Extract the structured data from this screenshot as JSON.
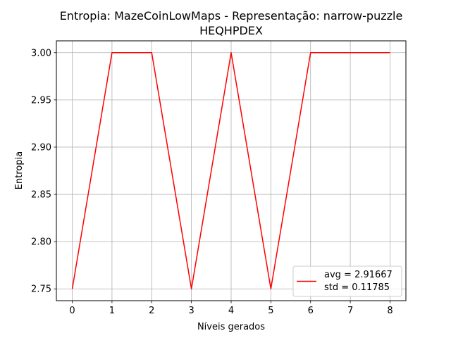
{
  "chart_data": {
    "type": "line",
    "title_line1": "Entropia: MazeCoinLowMaps - Representação: narrow-puzzle",
    "title_line2": "HEQHPDEX",
    "xlabel": "Níveis gerados",
    "ylabel": "Entropia",
    "x": [
      0,
      1,
      2,
      3,
      4,
      5,
      6,
      7,
      8
    ],
    "series": [
      {
        "values": [
          2.75,
          3.0,
          3.0,
          2.75,
          3.0,
          2.75,
          3.0,
          3.0,
          3.0
        ],
        "color": "#ff0000"
      }
    ],
    "xlim": [
      -0.4,
      8.4
    ],
    "ylim": [
      2.7375,
      3.0125
    ],
    "xticks": [
      "0",
      "1",
      "2",
      "3",
      "4",
      "5",
      "6",
      "7",
      "8"
    ],
    "yticks": [
      "2.75",
      "2.80",
      "2.85",
      "2.90",
      "2.95",
      "3.00"
    ],
    "grid": true,
    "legend": {
      "position": "lower-right",
      "line1": "avg = 2.91667",
      "line2": "std = 0.11785"
    }
  }
}
